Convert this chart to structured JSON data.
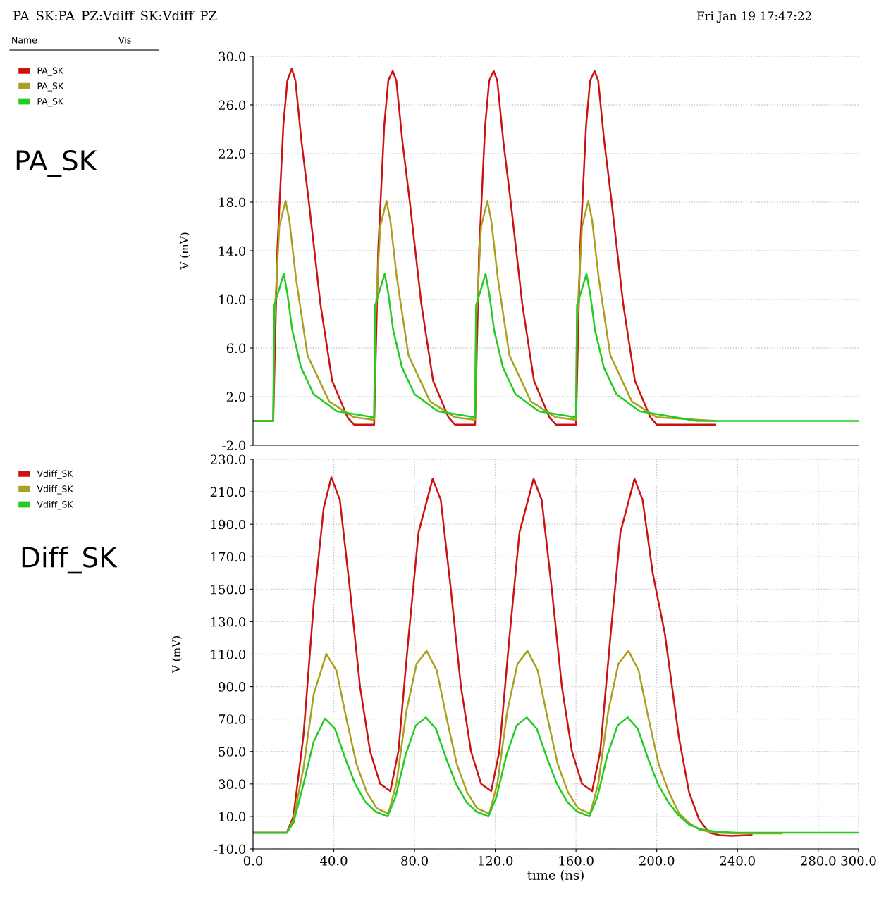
{
  "chart_data": [
    {
      "type": "line",
      "title": "PA_SK:PA_PZ:Vdiff_SK:Vdiff_PZ",
      "ylabel": "V (mV)",
      "annotations": [
        "Fri Jan 19 17:47:22",
        "Name",
        "Vis",
        "PA_SK"
      ],
      "xlim": [
        0,
        300
      ],
      "ylim": [
        -2,
        30
      ],
      "yticks": [
        {
          "value": 30,
          "label": "30.0"
        },
        {
          "value": 26,
          "label": "26.0"
        },
        {
          "value": 22,
          "label": "22.0"
        },
        {
          "value": 18,
          "label": "18.0"
        },
        {
          "value": 14,
          "label": "14.0"
        },
        {
          "value": 10,
          "label": "10.0"
        },
        {
          "value": 6,
          "label": "6.0"
        },
        {
          "value": 2,
          "label": "2.0"
        },
        {
          "value": -2,
          "label": "-2.0"
        }
      ],
      "tick_labels": "y",
      "grid": true,
      "legend": "left",
      "marker": "none",
      "line_style": "solid",
      "series": [
        {
          "name": "PA_SK",
          "color": "#cc1111",
          "x": [
            0,
            10,
            12,
            15,
            17,
            19.2,
            21,
            24,
            27.6,
            33.4,
            39.2,
            46.8,
            50,
            59.5,
            60,
            62,
            65,
            67,
            69.2,
            71,
            74,
            77.6,
            83.4,
            89.2,
            96.8,
            100,
            109.5,
            110,
            112,
            115,
            117,
            119.2,
            121,
            124,
            127.6,
            133.4,
            139.2,
            146.8,
            150,
            159.5,
            160,
            162,
            165,
            167,
            169.2,
            171,
            174,
            177.6,
            183.4,
            189.2,
            196.8,
            200,
            229
          ],
          "values": [
            0,
            0,
            14,
            24.3,
            28,
            29.0,
            28,
            23,
            18.1,
            9.6,
            3.3,
            0.3,
            -0.3,
            -0.3,
            -0.3,
            14,
            24.3,
            28,
            28.8,
            28,
            23,
            18.1,
            9.6,
            3.3,
            0.3,
            -0.3,
            -0.3,
            -0.3,
            14,
            24.3,
            28,
            28.8,
            28,
            23,
            18.1,
            9.6,
            3.3,
            0.3,
            -0.3,
            -0.3,
            -0.3,
            14,
            24.3,
            28,
            28.8,
            28,
            23,
            18.1,
            9.6,
            3.3,
            0.3,
            -0.3,
            -0.3
          ]
        },
        {
          "name": "PA_SK",
          "color": "#aaa020",
          "x": [
            0,
            10,
            10.5,
            13,
            16.1,
            18,
            21.3,
            27,
            37.7,
            50,
            59.5,
            60,
            60.5,
            63,
            66.1,
            68,
            71.3,
            77,
            87.7,
            100,
            109.5,
            110,
            110.5,
            113,
            116.1,
            118,
            121.3,
            127,
            137.7,
            150,
            159.5,
            160,
            160.5,
            163,
            166.1,
            168,
            171.3,
            177,
            187.7,
            200,
            229
          ],
          "values": [
            0,
            0,
            8,
            16,
            18.1,
            16.5,
            11.7,
            5.4,
            1.6,
            0.3,
            0.1,
            0.1,
            8,
            16,
            18.1,
            16.5,
            11.7,
            5.4,
            1.6,
            0.3,
            0.1,
            0.1,
            8,
            16,
            18.1,
            16.5,
            11.7,
            5.4,
            1.6,
            0.3,
            0.1,
            0.1,
            8,
            16,
            18.1,
            16.5,
            11.7,
            5.4,
            1.6,
            0.3,
            0
          ]
        },
        {
          "name": "PA_SK",
          "color": "#22cc22",
          "x": [
            0,
            10,
            10.5,
            15.2,
            17,
            19.4,
            23.8,
            30,
            41.5,
            59.5,
            60,
            60.5,
            65.2,
            67,
            69.4,
            73.8,
            80,
            91.5,
            109.5,
            110,
            110.5,
            115.2,
            117,
            119.4,
            123.8,
            130,
            141.5,
            159.5,
            160,
            160.5,
            165.2,
            167,
            169.4,
            173.8,
            180,
            191.5,
            220,
            300
          ],
          "values": [
            0,
            0,
            9.5,
            12.1,
            10.5,
            7.5,
            4.4,
            2.2,
            0.8,
            0.3,
            0.3,
            9.5,
            12.1,
            10.5,
            7.5,
            4.4,
            2.2,
            0.8,
            0.3,
            0.3,
            9.5,
            12.1,
            10.5,
            7.5,
            4.4,
            2.2,
            0.8,
            0.3,
            0.3,
            9.5,
            12.1,
            10.5,
            7.5,
            4.4,
            2.2,
            0.8,
            0,
            0
          ]
        }
      ]
    },
    {
      "type": "line",
      "xlabel": "time (ns)",
      "ylabel": "V (mV)",
      "annotations": [
        "Diff_SK"
      ],
      "xlim": [
        0,
        300
      ],
      "ylim": [
        -10,
        230
      ],
      "xticks": [
        {
          "value": 0,
          "label": "0.0"
        },
        {
          "value": 40,
          "label": "40.0"
        },
        {
          "value": 80,
          "label": "80.0"
        },
        {
          "value": 120,
          "label": "120.0"
        },
        {
          "value": 160,
          "label": "160.0"
        },
        {
          "value": 200,
          "label": "200.0"
        },
        {
          "value": 240,
          "label": "240.0"
        },
        {
          "value": 280,
          "label": "280.0"
        },
        {
          "value": 300,
          "label": "300.0"
        }
      ],
      "yticks": [
        {
          "value": 230,
          "label": "230.0"
        },
        {
          "value": 210,
          "label": "210.0"
        },
        {
          "value": 190,
          "label": "190.0"
        },
        {
          "value": 170,
          "label": "170.0"
        },
        {
          "value": 150,
          "label": "150.0"
        },
        {
          "value": 130,
          "label": "130.0"
        },
        {
          "value": 110,
          "label": "110.0"
        },
        {
          "value": 90,
          "label": "90.0"
        },
        {
          "value": 70,
          "label": "70.0"
        },
        {
          "value": 50,
          "label": "50.0"
        },
        {
          "value": 30,
          "label": "30.0"
        },
        {
          "value": 10,
          "label": "10.0"
        },
        {
          "value": -10,
          "label": "-10.0"
        }
      ],
      "grid": true,
      "legend": "left",
      "marker": "none",
      "line_style": "solid",
      "series": [
        {
          "name": "Vdiff_SK",
          "color": "#cc1111",
          "x": [
            0,
            16.7,
            20,
            25,
            30,
            35,
            38.8,
            43,
            48,
            53,
            58,
            63,
            68,
            72,
            77,
            82,
            89,
            93,
            98,
            103,
            108,
            113,
            118,
            122,
            127,
            132,
            139,
            143,
            148,
            153,
            158,
            163,
            168,
            172,
            177,
            182,
            189,
            193,
            198,
            204,
            211,
            216,
            221,
            226,
            231,
            237,
            247
          ],
          "values": [
            0,
            0,
            10,
            60,
            140,
            200,
            219,
            205,
            150,
            90,
            50,
            30,
            25.6,
            50,
            120,
            185,
            218,
            205,
            150,
            90,
            50,
            30,
            25.6,
            50,
            120,
            185,
            218,
            205,
            150,
            90,
            50,
            30,
            25.6,
            50,
            120,
            185,
            218,
            205,
            160,
            122.8,
            58.6,
            25,
            8,
            0,
            -1.5,
            -2,
            -1.5
          ]
        },
        {
          "name": "Vdiff_SK",
          "color": "#aaa020",
          "x": [
            0,
            16.7,
            20,
            25,
            30,
            36.3,
            41.3,
            46.3,
            51.3,
            56.3,
            61.3,
            67,
            71,
            76,
            81,
            86,
            91,
            96,
            101,
            106,
            111,
            117,
            121,
            126,
            131,
            136,
            141,
            146,
            151,
            156,
            161,
            167,
            171,
            176,
            181,
            186,
            191,
            196,
            201,
            206,
            211,
            216,
            221,
            228,
            240,
            262
          ],
          "values": [
            0,
            0,
            8,
            40,
            85,
            110.2,
            100,
            70,
            42,
            25,
            15,
            11.7,
            30,
            75,
            104,
            112,
            100,
            70,
            42,
            25,
            15,
            11.7,
            30,
            75,
            104,
            112,
            100,
            70,
            42,
            25,
            15,
            11.7,
            30,
            75,
            104,
            112,
            100,
            70,
            42,
            25,
            12,
            6,
            2,
            0,
            -0.5,
            -0.5
          ]
        },
        {
          "name": "Vdiff_SK",
          "color": "#22cc22",
          "x": [
            0,
            16.7,
            20,
            25,
            30,
            35.6,
            40.6,
            45.6,
            50.6,
            55.6,
            60.6,
            66.6,
            70.6,
            75.6,
            80.6,
            85.6,
            90.6,
            95.6,
            100.6,
            105.6,
            110.6,
            116.6,
            120.6,
            125.6,
            130.6,
            135.6,
            140.6,
            145.6,
            150.6,
            155.6,
            160.6,
            166.6,
            170.6,
            175.6,
            180.6,
            185.6,
            190.6,
            195.6,
            200.6,
            205.6,
            210.6,
            216,
            222,
            230,
            240,
            300
          ],
          "values": [
            0,
            0,
            6,
            30,
            56,
            70.3,
            64,
            46,
            30,
            19,
            13,
            10,
            22,
            48,
            66,
            71,
            64,
            46,
            30,
            19,
            13,
            10,
            22,
            48,
            66,
            71,
            64,
            46,
            30,
            19,
            13,
            10,
            22,
            48,
            66,
            71,
            64,
            46,
            30,
            19,
            11,
            5,
            2,
            0.5,
            0,
            0
          ]
        }
      ]
    }
  ]
}
